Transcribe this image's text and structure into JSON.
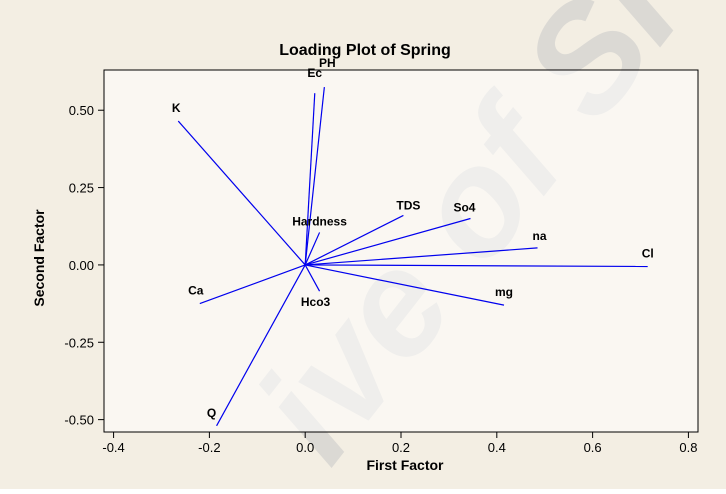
{
  "chart_data": {
    "type": "line",
    "title": "Loading Plot of Spring",
    "xlabel": "First Factor",
    "ylabel": "Second Factor",
    "xlim": [
      -0.42,
      0.82
    ],
    "ylim": [
      -0.54,
      0.63
    ],
    "x_ticks": [
      -0.4,
      -0.2,
      0.0,
      0.2,
      0.4,
      0.6,
      0.8
    ],
    "x_tick_labels": [
      "-0.4",
      "-0.2",
      "0.0",
      "0.2",
      "0.4",
      "0.6",
      "0.8"
    ],
    "y_ticks": [
      0.5,
      0.25,
      0.0,
      -0.25,
      -0.5
    ],
    "y_tick_labels": [
      "0.50",
      "0.25",
      "0.00",
      "-0.25",
      "-0.50"
    ],
    "grid": false,
    "background_color": "#f3eee3",
    "plot_area_color": "#ffffff",
    "line_color": "#0000ee",
    "watermark_color": "#c9c9c9",
    "series": [
      {
        "name": "K",
        "x": -0.265,
        "y": 0.465
      },
      {
        "name": "Ec",
        "x": 0.02,
        "y": 0.555
      },
      {
        "name": "PH",
        "x": 0.04,
        "y": 0.575
      },
      {
        "name": "Hardness",
        "x": 0.03,
        "y": 0.105
      },
      {
        "name": "TDS",
        "x": 0.205,
        "y": 0.16
      },
      {
        "name": "So4",
        "x": 0.345,
        "y": 0.15
      },
      {
        "name": "na",
        "x": 0.485,
        "y": 0.055
      },
      {
        "name": "Cl",
        "x": 0.715,
        "y": -0.005
      },
      {
        "name": "mg",
        "x": 0.415,
        "y": -0.13
      },
      {
        "name": "Hco3",
        "x": 0.03,
        "y": -0.085
      },
      {
        "name": "Ca",
        "x": -0.22,
        "y": -0.125
      },
      {
        "name": "Q",
        "x": -0.185,
        "y": -0.52
      }
    ]
  }
}
